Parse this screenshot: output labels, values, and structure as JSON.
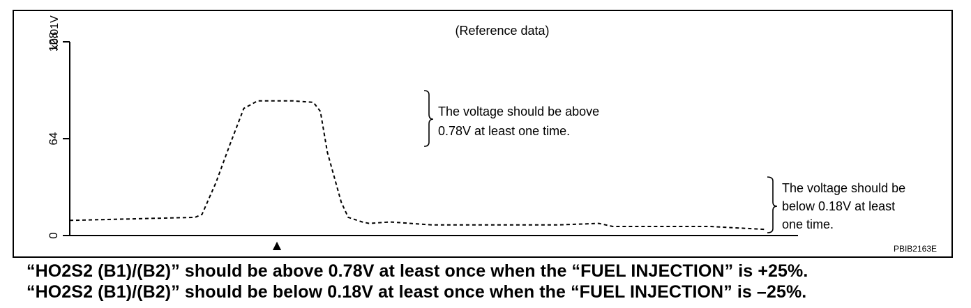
{
  "chart_data": {
    "type": "line",
    "title": "(Reference data)",
    "ylabel": "x0.01V",
    "xlabel": "",
    "ylim": [
      0,
      128
    ],
    "yticks": [
      "0",
      "64",
      "128"
    ],
    "grid": false,
    "legend": "none",
    "marker": "▲",
    "series": [
      {
        "style": "dashed",
        "x": [
          0,
          18,
          19,
          21,
          23,
          25,
          27,
          32,
          35,
          36,
          37,
          39,
          40,
          42,
          43,
          46,
          49,
          52,
          55,
          58,
          64,
          70,
          76,
          78,
          80,
          84,
          88,
          92,
          100
        ],
        "y": [
          10,
          12,
          14,
          35,
          60,
          84,
          89,
          89,
          88,
          82,
          55,
          22,
          12,
          9,
          8,
          9,
          8,
          7,
          7,
          7,
          7,
          7,
          8,
          6,
          6,
          6,
          6,
          6,
          4
        ]
      }
    ],
    "annotations": [
      "The voltage should be above 0.78V at least one time.",
      "The voltage should be below 0.18V at least one time."
    ],
    "figure_id": "PBIB2163E"
  },
  "annotation_upper": {
    "line1": "The voltage should be above",
    "line2": "0.78V at least one time."
  },
  "annotation_lower": {
    "line1": "The voltage should be",
    "line2": "below 0.18V at least",
    "line3": "one time."
  },
  "captions": {
    "line1": "“HO2S2 (B1)/(B2)” should be above 0.78V at least once when the “FUEL INJECTION” is +25%.",
    "line2": "“HO2S2 (B1)/(B2)” should be below 0.18V at least once when the “FUEL INJECTION” is –25%."
  }
}
